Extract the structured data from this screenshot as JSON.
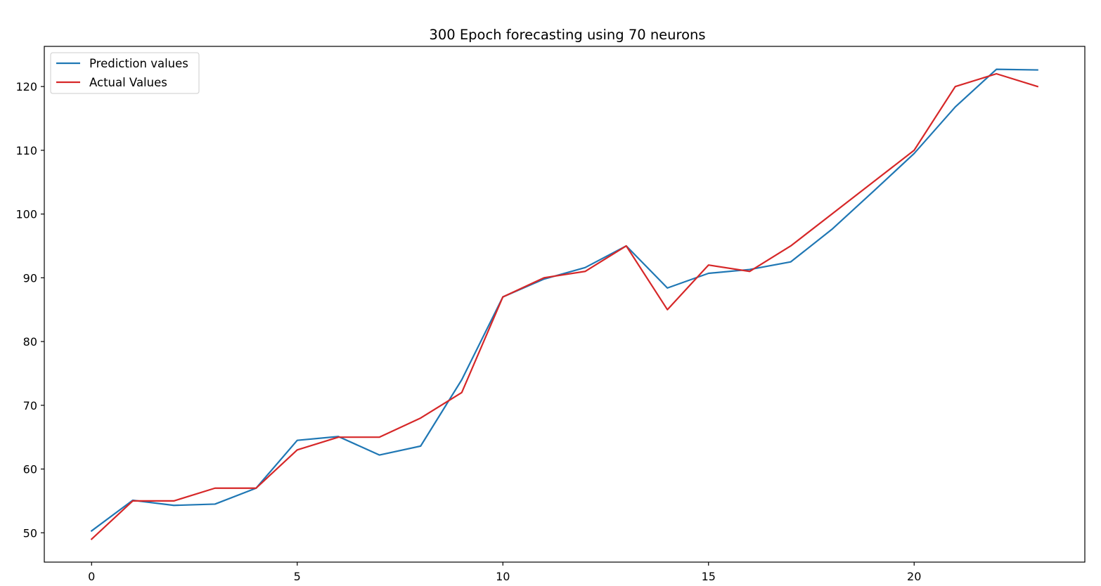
{
  "chart_data": {
    "type": "line",
    "title": "300 Epoch forecasting using 70 neurons",
    "xlabel": "",
    "ylabel": "",
    "xlim": [
      -1.15,
      24.15
    ],
    "ylim": [
      45.4,
      126.3
    ],
    "x_ticks": [
      0,
      5,
      10,
      15,
      20
    ],
    "y_ticks": [
      50,
      60,
      70,
      80,
      90,
      100,
      110,
      120
    ],
    "grid": false,
    "legend_position": "top-left",
    "x": [
      0,
      1,
      2,
      3,
      4,
      5,
      6,
      7,
      8,
      9,
      10,
      11,
      12,
      13,
      14,
      15,
      16,
      17,
      18,
      19,
      20,
      21,
      22,
      23
    ],
    "series": [
      {
        "name": "Prediction values",
        "color": "#1f77b4",
        "values": [
          50.3,
          55.1,
          54.3,
          54.5,
          57.0,
          64.5,
          65.1,
          62.2,
          63.6,
          74.0,
          87.0,
          89.8,
          91.6,
          95.0,
          88.4,
          90.7,
          91.3,
          92.5,
          97.6,
          103.5,
          109.5,
          116.8,
          122.7,
          122.6
        ]
      },
      {
        "name": "Actual Values",
        "color": "#d62728",
        "values": [
          49.0,
          55.0,
          55.0,
          57.0,
          57.0,
          63.0,
          65.0,
          65.0,
          68.0,
          72.0,
          87.0,
          90.0,
          91.0,
          95.0,
          85.0,
          92.0,
          91.0,
          95.0,
          100.0,
          105.0,
          110.0,
          120.0,
          122.0,
          120.0
        ]
      }
    ]
  }
}
